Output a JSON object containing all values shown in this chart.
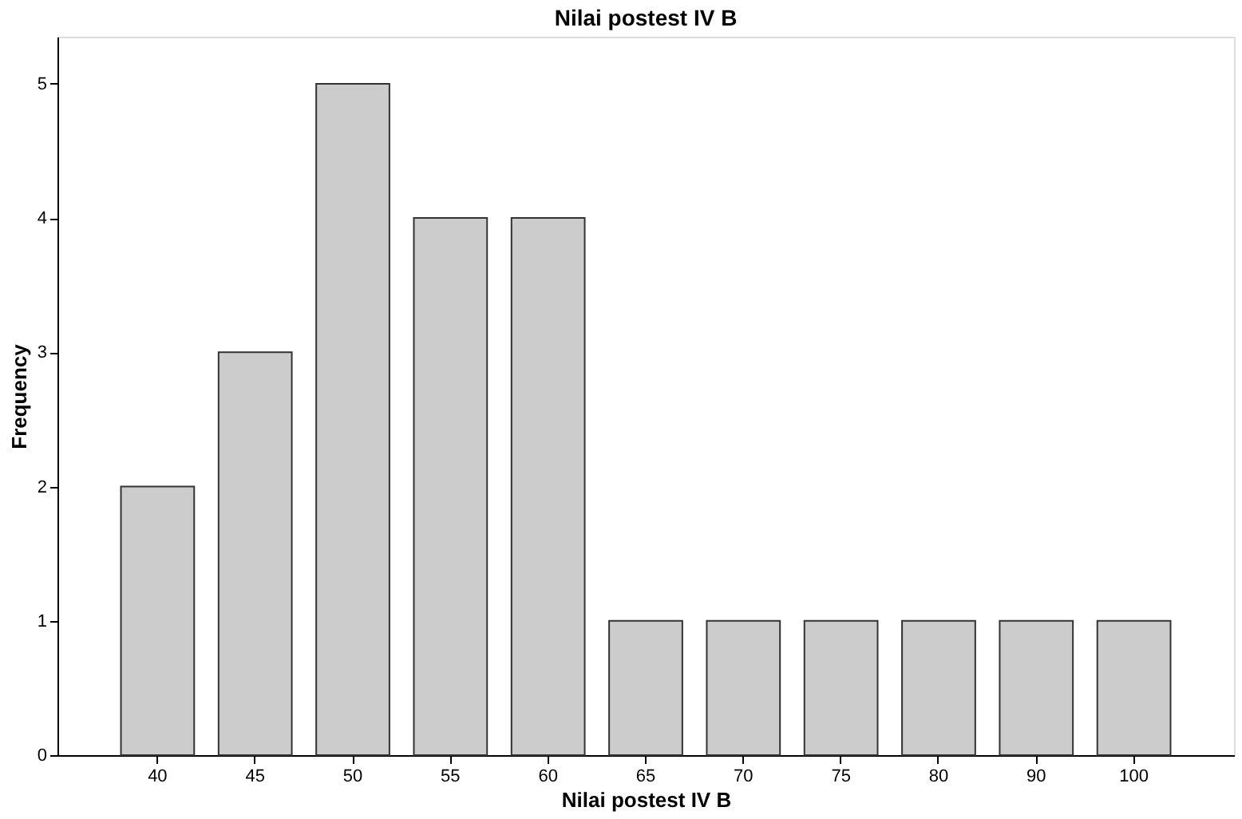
{
  "chart_data": {
    "type": "bar",
    "title": "Nilai postest IV B",
    "xlabel": "Nilai postest IV B",
    "ylabel": "Frequency",
    "categories": [
      "40",
      "45",
      "50",
      "55",
      "60",
      "65",
      "70",
      "75",
      "80",
      "90",
      "100"
    ],
    "values": [
      2,
      3,
      5,
      4,
      4,
      1,
      1,
      1,
      1,
      1,
      1
    ],
    "color": "#cccccc",
    "ylim": [
      0,
      5.35
    ],
    "yticks": [
      0,
      1,
      2,
      3,
      4,
      5
    ],
    "grid": false
  }
}
